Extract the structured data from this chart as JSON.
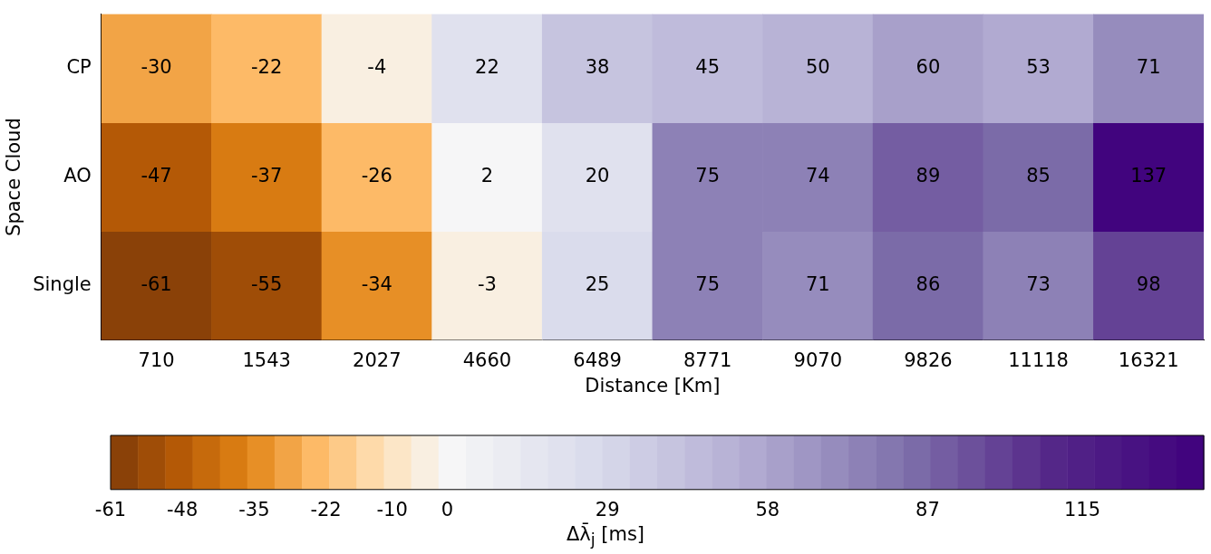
{
  "chart_data": {
    "type": "heatmap",
    "xlabel": "Distance [Km]",
    "ylabel": "Space Cloud",
    "clabel": "Δλ̄$_{j}$ [ms]",
    "categories": [
      "710",
      "1543",
      "2027",
      "4660",
      "6489",
      "8771",
      "9070",
      "9826",
      "11118",
      "16321"
    ],
    "y_categories": [
      "CP",
      "AO",
      "Single"
    ],
    "cells": [
      [
        -30,
        -22,
        -4,
        22,
        38,
        45,
        50,
        60,
        53,
        71
      ],
      [
        -47,
        -37,
        -26,
        2,
        20,
        75,
        74,
        89,
        85,
        137
      ],
      [
        -61,
        -55,
        -34,
        -3,
        25,
        75,
        71,
        86,
        73,
        98
      ]
    ],
    "data_labels": true,
    "clim": [
      -61,
      137
    ],
    "cticks": [
      -61,
      -48,
      -35,
      -22,
      -10,
      0,
      29,
      58,
      87,
      115
    ]
  }
}
